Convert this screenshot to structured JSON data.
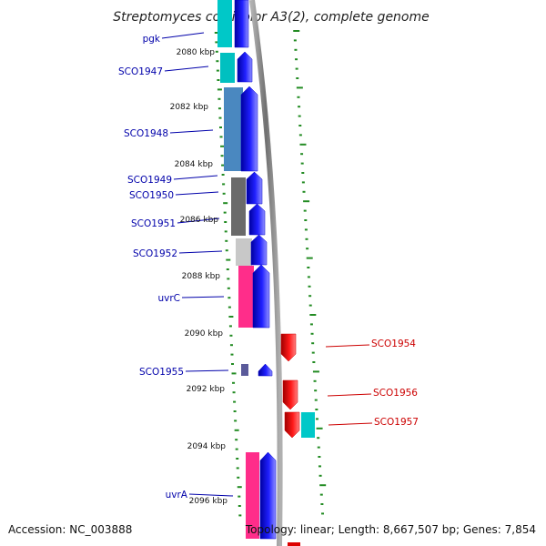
{
  "title": "Streptomyces coelicolor A3(2), complete genome",
  "footer": {
    "accession": "Accession: NC_003888",
    "stats": "Topology: linear; Length: 8,667,507 bp; Genes: 7,854"
  },
  "colors": {
    "forward_arrow": "#0000ee",
    "reverse_arrow": "#dd0000",
    "left_label": "#0000aa",
    "right_label": "#cc0000",
    "tick": "#228b22",
    "backbone": "#808080"
  },
  "ruler": {
    "ticks": [
      "2080 kbp",
      "2082 kbp",
      "2084 kbp",
      "2086 kbp",
      "2088 kbp",
      "2090 kbp",
      "2092 kbp",
      "2094 kbp",
      "2096 kbp"
    ]
  },
  "genes_left": [
    "pgk",
    "SCO1947",
    "SCO1948",
    "SCO1949",
    "SCO1950",
    "SCO1951",
    "SCO1952",
    "uvrC",
    "SCO1955",
    "uvrA"
  ],
  "genes_right": [
    "SCO1954",
    "SCO1956",
    "SCO1957"
  ],
  "category_blocks": [
    {
      "gene": "pgk",
      "color": "#00c8c8"
    },
    {
      "gene": "SCO1947",
      "color": "#00c0c0"
    },
    {
      "gene": "SCO1948",
      "color": "#4a88c0"
    },
    {
      "gene": "SCO1949",
      "color": "#6a6a6a"
    },
    {
      "gene": "SCO1952",
      "color": "#c8c8c8"
    },
    {
      "gene": "uvrC",
      "color": "#ff2d8a"
    },
    {
      "gene": "SCO1955",
      "color": "#5a5a9a"
    },
    {
      "gene": "SCO1957",
      "color": "#00c8c8"
    },
    {
      "gene": "uvrA",
      "color": "#ff2d8a"
    }
  ]
}
